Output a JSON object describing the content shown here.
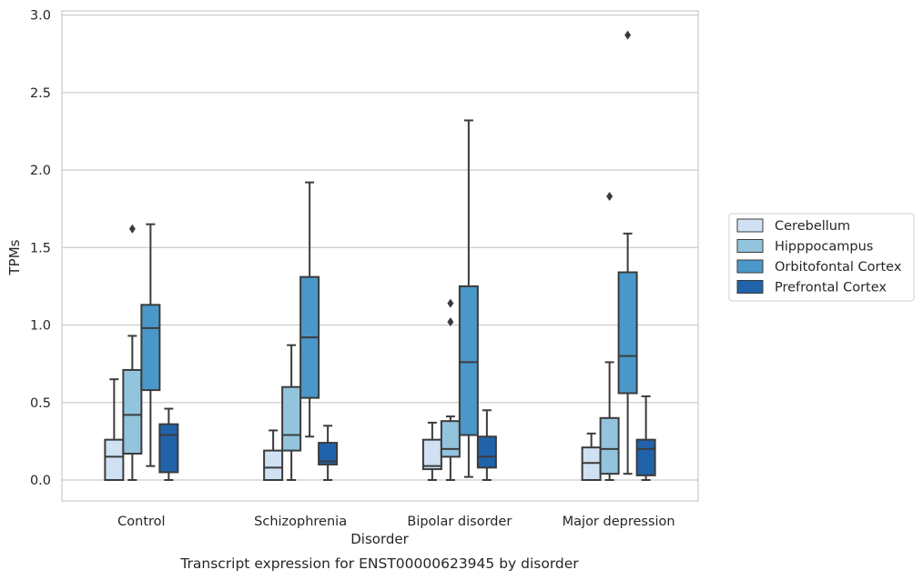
{
  "chart_data": {
    "type": "box",
    "caption": "Transcript expression for ENST00000623945 by disorder",
    "xlabel": "Disorder",
    "ylabel": "TPMs",
    "ylim": [
      -0.14,
      3.02
    ],
    "yticks": [
      "0.0",
      "0.5",
      "1.0",
      "1.5",
      "2.0",
      "2.5",
      "3.0"
    ],
    "ytick_values": [
      0,
      0.5,
      1.0,
      1.5,
      2.0,
      2.5,
      3.0
    ],
    "grid": "horizontal",
    "legend_position": "center-right-outside",
    "categories": [
      "Control",
      "Schizophrenia",
      "Bipolar disorder",
      "Major depression"
    ],
    "series": [
      {
        "name": "Cerebellum",
        "color": "#cfe1f2",
        "boxes": [
          {
            "whislo": 0.0,
            "q1": 0.0,
            "med": 0.15,
            "q3": 0.26,
            "whishi": 0.65,
            "fliers": []
          },
          {
            "whislo": 0.0,
            "q1": 0.0,
            "med": 0.08,
            "q3": 0.19,
            "whishi": 0.32,
            "fliers": []
          },
          {
            "whislo": 0.0,
            "q1": 0.07,
            "med": 0.09,
            "q3": 0.26,
            "whishi": 0.37,
            "fliers": []
          },
          {
            "whislo": 0.0,
            "q1": 0.0,
            "med": 0.11,
            "q3": 0.21,
            "whishi": 0.3,
            "fliers": []
          }
        ]
      },
      {
        "name": "Hipppocampus",
        "color": "#93c4de",
        "boxes": [
          {
            "whislo": 0.0,
            "q1": 0.17,
            "med": 0.42,
            "q3": 0.71,
            "whishi": 0.93,
            "fliers": [
              1.62
            ]
          },
          {
            "whislo": 0.0,
            "q1": 0.19,
            "med": 0.29,
            "q3": 0.6,
            "whishi": 0.87,
            "fliers": []
          },
          {
            "whislo": 0.0,
            "q1": 0.15,
            "med": 0.2,
            "q3": 0.38,
            "whishi": 0.41,
            "fliers": [
              1.02,
              1.14
            ]
          },
          {
            "whislo": 0.0,
            "q1": 0.04,
            "med": 0.2,
            "q3": 0.4,
            "whishi": 0.76,
            "fliers": [
              1.83
            ]
          }
        ]
      },
      {
        "name": "Orbitofontal Cortex",
        "color": "#4a98c9",
        "boxes": [
          {
            "whislo": 0.09,
            "q1": 0.58,
            "med": 0.98,
            "q3": 1.13,
            "whishi": 1.65,
            "fliers": []
          },
          {
            "whislo": 0.28,
            "q1": 0.53,
            "med": 0.92,
            "q3": 1.31,
            "whishi": 1.92,
            "fliers": []
          },
          {
            "whislo": 0.02,
            "q1": 0.29,
            "med": 0.76,
            "q3": 1.25,
            "whishi": 2.32,
            "fliers": []
          },
          {
            "whislo": 0.04,
            "q1": 0.56,
            "med": 0.8,
            "q3": 1.34,
            "whishi": 1.59,
            "fliers": [
              2.87
            ]
          }
        ]
      },
      {
        "name": "Prefrontal Cortex",
        "color": "#2163aa",
        "boxes": [
          {
            "whislo": 0.0,
            "q1": 0.05,
            "med": 0.29,
            "q3": 0.36,
            "whishi": 0.46,
            "fliers": []
          },
          {
            "whislo": 0.0,
            "q1": 0.1,
            "med": 0.12,
            "q3": 0.24,
            "whishi": 0.35,
            "fliers": []
          },
          {
            "whislo": 0.0,
            "q1": 0.08,
            "med": 0.15,
            "q3": 0.28,
            "whishi": 0.45,
            "fliers": []
          },
          {
            "whislo": 0.0,
            "q1": 0.03,
            "med": 0.2,
            "q3": 0.26,
            "whishi": 0.54,
            "fliers": []
          }
        ]
      }
    ]
  }
}
